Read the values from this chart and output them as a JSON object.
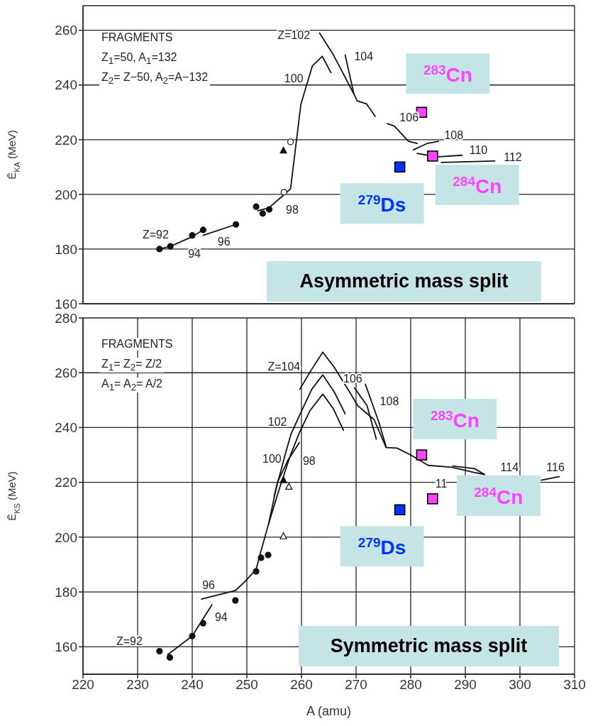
{
  "chart_data": [
    {
      "type": "line",
      "title": "Asymmetric mass split",
      "ylabel": "Ē$_{KA}$ (MeV)",
      "xlim": [
        220,
        310
      ],
      "xticks": [
        220,
        230,
        240,
        250,
        260,
        270,
        280,
        290,
        300,
        310
      ],
      "ylim": [
        160,
        269
      ],
      "yticks": [
        160,
        180,
        200,
        220,
        240,
        260
      ],
      "tick_labels": "y",
      "grid": true,
      "legend": false,
      "annotations": [
        "FRAGMENTS",
        "Z$_{1}$=50,  A$_{1}$=132",
        "Z$_{2}$= Z−50,  A$_{2}$=A−132",
        "Z=102",
        "100",
        "98",
        "Z=92",
        "94",
        "96",
        "104",
        "106",
        "108",
        "110",
        "112"
      ],
      "series": [
        {
          "type": "line",
          "marker": "none",
          "color": "#111111",
          "x": [
            234,
            236,
            240,
            242
          ],
          "values": [
            180,
            181,
            184.5,
            187
          ]
        },
        {
          "type": "line",
          "marker": "none",
          "color": "#111111",
          "x": [
            242,
            248
          ],
          "values": [
            185,
            189
          ]
        },
        {
          "type": "scatter",
          "marker": "circle",
          "color": "#111111",
          "x": [
            234,
            236,
            240,
            242,
            248,
            251.7,
            252.9,
            254.1
          ],
          "values": [
            180,
            181,
            185,
            187,
            189,
            195.5,
            193,
            194.5
          ]
        },
        {
          "type": "line",
          "marker": "none",
          "color": "#111111",
          "x": [
            252,
            254,
            256.3,
            258,
            259.9,
            262,
            263.8,
            265.4
          ],
          "values": [
            194,
            195,
            199,
            202,
            233,
            247,
            250.5,
            244.5
          ]
        },
        {
          "type": "line",
          "marker": "none",
          "color": "#111111",
          "x": [
            263.3,
            265.8,
            269.6,
            270.2,
            271.9,
            273.5
          ],
          "values": [
            259,
            251.2,
            236.7,
            234.2,
            233.1,
            228.5
          ]
        },
        {
          "type": "line",
          "marker": "none",
          "color": "#111111",
          "x": [
            268,
            269.6
          ],
          "values": [
            251,
            236.7
          ]
        },
        {
          "type": "line",
          "marker": "none",
          "color": "#111111",
          "x": [
            275.7,
            277,
            279.6,
            281.2
          ],
          "values": [
            225.9,
            225,
            219.4,
            218.6
          ]
        },
        {
          "type": "line",
          "marker": "none",
          "color": "#111111",
          "x": [
            280.5,
            283,
            285.1
          ],
          "values": [
            216.3,
            218.6,
            219.4
          ]
        },
        {
          "type": "line",
          "marker": "none",
          "color": "#111111",
          "x": [
            281.2,
            284.7,
            289.4
          ],
          "values": [
            215,
            213.7,
            214.3
          ]
        },
        {
          "type": "line",
          "marker": "none",
          "color": "#111111",
          "x": [
            285.6,
            295.4
          ],
          "values": [
            211.7,
            212.2
          ]
        },
        {
          "type": "scatter",
          "marker": "triangle",
          "color": "#111111",
          "x": [
            256.7
          ],
          "values": [
            216
          ]
        },
        {
          "type": "scatter",
          "marker": "circle",
          "color": "#ffffff",
          "x": [
            256.8,
            258
          ],
          "values": [
            200.8,
            219.2
          ]
        },
        {
          "type": "scatter",
          "marker": "square",
          "name": "$^{283}$Cn",
          "color": "#ff44ff",
          "x": [
            282
          ],
          "values": [
            230
          ]
        },
        {
          "type": "scatter",
          "marker": "square",
          "name": "$^{284}$Cn",
          "color": "#ff44ff",
          "x": [
            284
          ],
          "values": [
            214
          ]
        },
        {
          "type": "scatter",
          "marker": "square",
          "name": "$^{279}$Ds",
          "color": "#0033ff",
          "x": [
            278
          ],
          "values": [
            210
          ]
        }
      ]
    },
    {
      "type": "line",
      "title": "Symmetric mass split",
      "xlabel": "A (amu)",
      "ylabel": "Ē$_{KS}$ (MeV)",
      "xlim": [
        220,
        310
      ],
      "xticks": [
        220,
        230,
        240,
        250,
        260,
        270,
        280,
        290,
        300,
        310
      ],
      "ylim": [
        150,
        280
      ],
      "yticks": [
        160,
        180,
        200,
        220,
        240,
        260,
        280
      ],
      "grid": true,
      "legend": false,
      "annotations": [
        "FRAGMENTS",
        "Z$_{1}$= Z$_{2}$= Z/2",
        "A$_{1}$= A$_{2}$= A/2",
        "Z=104",
        "102",
        "100",
        "98",
        "96",
        "94",
        "Z=92",
        "106",
        "108",
        "11",
        "114",
        "116"
      ],
      "series": [
        {
          "type": "line",
          "marker": "none",
          "color": "#111111",
          "x": [
            235.5,
            240,
            243.6
          ],
          "values": [
            157.1,
            163.9,
            175.3
          ]
        },
        {
          "type": "line",
          "marker": "none",
          "color": "#111111",
          "x": [
            241.7,
            247.9,
            249.7,
            251.7
          ],
          "values": [
            177.4,
            180.5,
            183.9,
            188.3
          ]
        },
        {
          "type": "scatter",
          "marker": "circle",
          "color": "#111111",
          "x": [
            234,
            235.9,
            240,
            242,
            247.9,
            251.7,
            252.6,
            253.9
          ],
          "values": [
            158.4,
            156.1,
            163.9,
            168.6,
            176.9,
            187.5,
            192.5,
            193.5
          ]
        },
        {
          "type": "line",
          "marker": "none",
          "color": "#111111",
          "x": [
            251.7,
            252.6,
            254,
            255.6,
            257.5,
            259.6
          ],
          "values": [
            188.3,
            195,
            205,
            220,
            228,
            234.5
          ]
        },
        {
          "type": "line",
          "marker": "none",
          "color": "#111111",
          "x": [
            254,
            256,
            258,
            259.6,
            261.5,
            263.9,
            265.8,
            267.7
          ],
          "values": [
            205,
            218,
            230,
            238,
            246,
            252.2,
            247,
            239
          ]
        },
        {
          "type": "line",
          "marker": "none",
          "color": "#111111",
          "x": [
            255,
            257,
            258.1,
            260,
            261.9,
            263.9,
            266,
            268
          ],
          "values": [
            215,
            230,
            237.7,
            246,
            254,
            259.2,
            253,
            245
          ]
        },
        {
          "type": "line",
          "marker": "none",
          "color": "#111111",
          "x": [
            259.7,
            261.8,
            263.9,
            266,
            268.5,
            270.3,
            273.3,
            275.5,
            277.5,
            280.1,
            283.2,
            287.5,
            291.7,
            293.5
          ],
          "values": [
            254,
            261,
            267.5,
            262,
            254,
            248,
            242.9,
            232.7,
            232.5,
            229.9,
            226.2,
            225.5,
            223.6,
            222.9
          ]
        },
        {
          "type": "line",
          "marker": "none",
          "color": "#111111",
          "x": [
            269.7,
            272,
            273.7
          ],
          "values": [
            254.5,
            248,
            235.8
          ]
        },
        {
          "type": "line",
          "marker": "none",
          "color": "#111111",
          "x": [
            271.7,
            274.2,
            275.5
          ],
          "values": [
            255.8,
            241.8,
            233
          ]
        },
        {
          "type": "line",
          "marker": "none",
          "color": "#111111",
          "x": [
            287.7,
            291.7,
            293.5
          ],
          "values": [
            226,
            225,
            222.9
          ]
        },
        {
          "type": "line",
          "marker": "none",
          "color": "#111111",
          "x": [
            303.9,
            307.2
          ],
          "values": [
            220.8,
            222.1
          ]
        },
        {
          "type": "scatter",
          "marker": "triangle",
          "color": "#111111",
          "x": [
            256.7
          ],
          "values": [
            220.8
          ]
        },
        {
          "type": "scatter",
          "marker": "triangle",
          "color": "#ffffff",
          "x": [
            256.7,
            257.7
          ],
          "values": [
            200.3,
            218.4
          ]
        },
        {
          "type": "scatter",
          "marker": "square",
          "name": "$^{283}$Cn",
          "color": "#ff44ff",
          "x": [
            282
          ],
          "values": [
            230
          ]
        },
        {
          "type": "scatter",
          "marker": "square",
          "name": "$^{284}$Cn",
          "color": "#ff44ff",
          "x": [
            284
          ],
          "values": [
            214
          ]
        },
        {
          "type": "scatter",
          "marker": "square",
          "name": "$^{279}$Ds",
          "color": "#0033ff",
          "x": [
            278
          ],
          "values": [
            210
          ]
        }
      ]
    }
  ]
}
